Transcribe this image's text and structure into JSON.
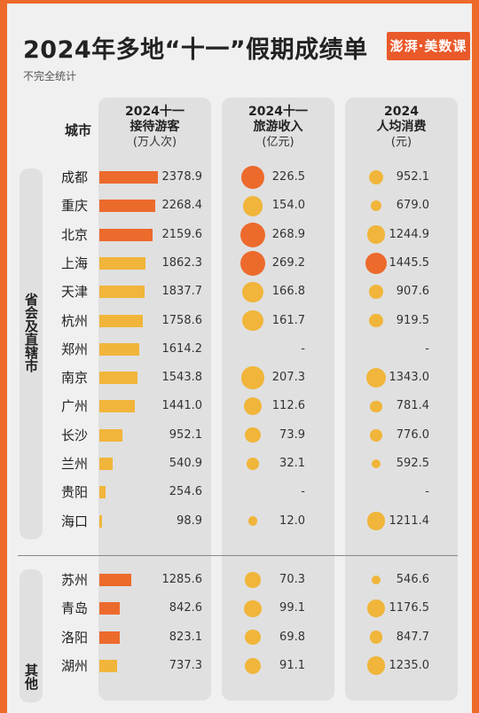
{
  "header": {
    "title": "2024年多地“十一”假期成绩单",
    "subtitle": "不完全统计",
    "logo_text": "澎湃·美数课"
  },
  "columns": {
    "city": "城市",
    "visitors": {
      "line1": "2024十一",
      "line2": "接待游客",
      "unit": "(万人次)"
    },
    "revenue": {
      "line1": "2024十一",
      "line2": "旅游收入",
      "unit": "(亿元)"
    },
    "spend": {
      "line1": "2024",
      "line2": "人均消费",
      "unit": "(元)"
    }
  },
  "groups": {
    "provincial": "省会及直辖市",
    "other": "其他"
  },
  "colors": {
    "high": "#ec6a2c",
    "normal": "#f0b53a"
  },
  "chart_data": {
    "type": "table",
    "title": "2024年多地“十一”假期成绩单",
    "columns": [
      "城市",
      "2024十一接待游客(万人次)",
      "2024十一旅游收入(亿元)",
      "2024人均消费(元)"
    ],
    "rows": [
      {
        "city": "成都",
        "visitors": 2378.9,
        "revenue": 226.5,
        "spend": 952.1,
        "group": "provincial"
      },
      {
        "city": "重庆",
        "visitors": 2268.4,
        "revenue": 154.0,
        "spend": 679.0,
        "group": "provincial"
      },
      {
        "city": "北京",
        "visitors": 2159.6,
        "revenue": 268.9,
        "spend": 1244.9,
        "group": "provincial"
      },
      {
        "city": "上海",
        "visitors": 1862.3,
        "revenue": 269.2,
        "spend": 1445.5,
        "group": "provincial"
      },
      {
        "city": "天津",
        "visitors": 1837.7,
        "revenue": 166.8,
        "spend": 907.6,
        "group": "provincial"
      },
      {
        "city": "杭州",
        "visitors": 1758.6,
        "revenue": 161.7,
        "spend": 919.5,
        "group": "provincial"
      },
      {
        "city": "郑州",
        "visitors": 1614.2,
        "revenue": null,
        "spend": null,
        "group": "provincial"
      },
      {
        "city": "南京",
        "visitors": 1543.8,
        "revenue": 207.3,
        "spend": 1343.0,
        "group": "provincial"
      },
      {
        "city": "广州",
        "visitors": 1441.0,
        "revenue": 112.6,
        "spend": 781.4,
        "group": "provincial"
      },
      {
        "city": "长沙",
        "visitors": 952.1,
        "revenue": 73.9,
        "spend": 776.0,
        "group": "provincial"
      },
      {
        "city": "兰州",
        "visitors": 540.9,
        "revenue": 32.1,
        "spend": 592.5,
        "group": "provincial"
      },
      {
        "city": "贵阳",
        "visitors": 254.6,
        "revenue": null,
        "spend": null,
        "group": "provincial"
      },
      {
        "city": "海口",
        "visitors": 98.9,
        "revenue": 12.0,
        "spend": 1211.4,
        "group": "provincial"
      },
      {
        "city": "苏州",
        "visitors": 1285.6,
        "revenue": 70.3,
        "spend": 546.6,
        "group": "other"
      },
      {
        "city": "青岛",
        "visitors": 842.6,
        "revenue": 99.1,
        "spend": 1176.5,
        "group": "other"
      },
      {
        "city": "洛阳",
        "visitors": 823.1,
        "revenue": 69.8,
        "spend": 847.7,
        "group": "other"
      },
      {
        "city": "湖州",
        "visitors": 737.3,
        "revenue": 91.1,
        "spend": 1235.0,
        "group": "other"
      }
    ],
    "highlighted": {
      "visitors": [
        "成都",
        "重庆",
        "北京",
        "苏州",
        "青岛",
        "洛阳"
      ],
      "revenue": [
        "成都",
        "北京",
        "上海"
      ],
      "spend": [
        "上海"
      ]
    },
    "missing_mark": "-"
  }
}
